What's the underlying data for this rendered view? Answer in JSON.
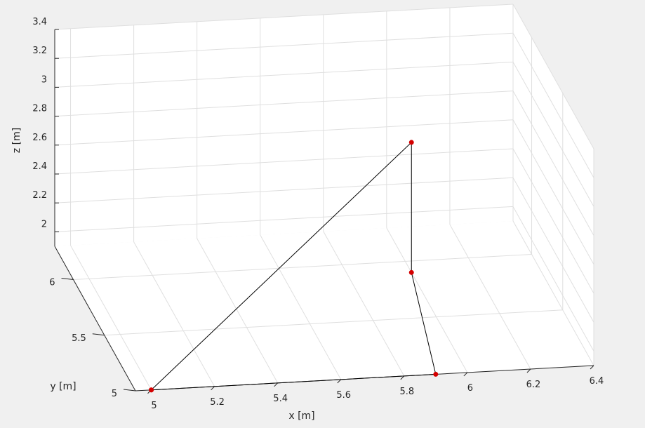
{
  "chart_data": {
    "type": "line",
    "title": "",
    "projection": "3d",
    "xlabel": "x [m]",
    "ylabel": "y [m]",
    "zlabel": "z [m]",
    "xlim": [
      4.95,
      6.4
    ],
    "ylim": [
      5,
      6.3
    ],
    "zlim": [
      1.9,
      3.4
    ],
    "xticks": [
      "5",
      "5.2",
      "5.4",
      "5.6",
      "5.8",
      "6",
      "6.2",
      "6.4"
    ],
    "yticks": [
      "5",
      "5.5",
      "6"
    ],
    "zticks": [
      "2",
      "2.2",
      "2.4",
      "2.6",
      "2.8",
      "3",
      "3.2",
      "3.4"
    ],
    "grid": true,
    "series": [
      {
        "line_color": "#000000",
        "marker_color": "#d40000",
        "points": [
          {
            "x": 5.0,
            "y": 5.0,
            "z": 1.9
          },
          {
            "x": 5.9,
            "y": 5.0,
            "z": 1.9
          },
          {
            "x": 6.0,
            "y": 5.9,
            "z": 1.9
          },
          {
            "x": 6.0,
            "y": 5.9,
            "z": 2.8
          },
          {
            "x": 5.0,
            "y": 5.0,
            "z": 1.9
          }
        ]
      }
    ]
  }
}
